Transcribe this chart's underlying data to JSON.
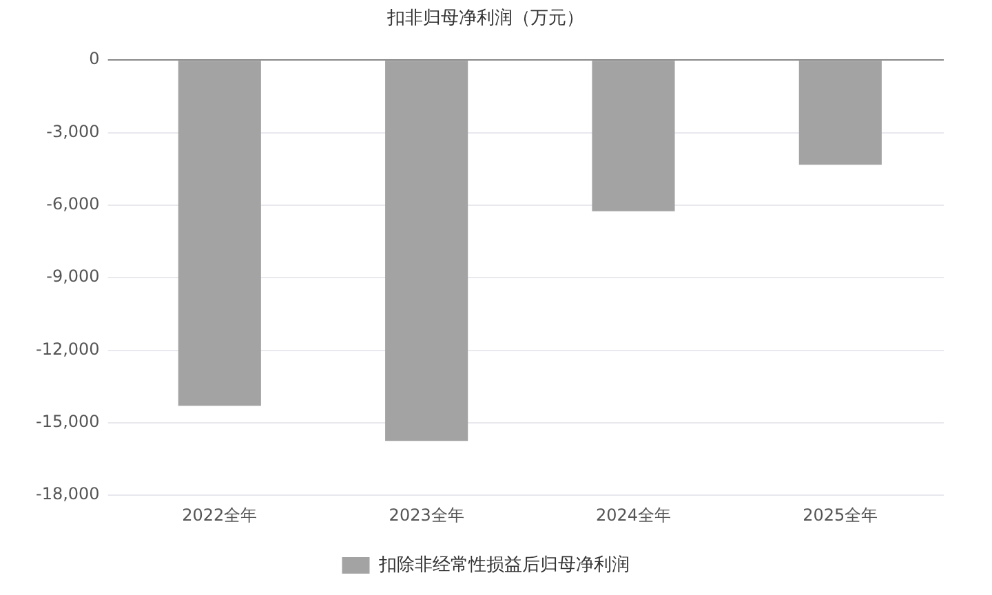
{
  "chart_data": {
    "type": "bar",
    "title": "扣非归母净利润（万元）",
    "categories": [
      "2022全年",
      "2023全年",
      "2024全年",
      "2025全年"
    ],
    "series": [
      {
        "name": "扣除非经常性损益后归母净利润",
        "color": "#a3a3a3",
        "values": [
          -14300,
          -15750,
          -6250,
          -4330
        ]
      }
    ],
    "ylim": [
      -18000,
      0
    ],
    "yticks": [
      {
        "value": -18000,
        "label": "-18,000"
      },
      {
        "value": -15000,
        "label": "-15,000"
      },
      {
        "value": -12000,
        "label": "-12,000"
      },
      {
        "value": -9000,
        "label": "-9,000"
      },
      {
        "value": -6000,
        "label": "-6,000"
      },
      {
        "value": -3000,
        "label": "-3,000"
      },
      0
    ],
    "grid": "y",
    "legend": "bottom"
  }
}
